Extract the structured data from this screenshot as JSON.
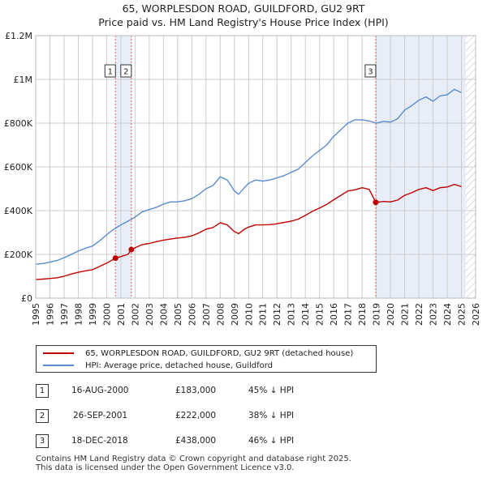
{
  "header": {
    "title": "65, WORPLESDON ROAD, GUILDFORD, GU2 9RT",
    "subtitle": "Price paid vs. HM Land Registry's House Price Index (HPI)"
  },
  "legend": {
    "property_label": "65, WORPLESDON ROAD, GUILDFORD, GU2 9RT (detached house)",
    "hpi_label": "HPI: Average price, detached house, Guildford"
  },
  "transactions": [
    {
      "num": "1",
      "date": "16-AUG-2000",
      "price": "£183,000",
      "hpi": "45% ↓ HPI"
    },
    {
      "num": "2",
      "date": "26-SEP-2001",
      "price": "£222,000",
      "hpi": "38% ↓ HPI"
    },
    {
      "num": "3",
      "date": "18-DEC-2018",
      "price": "£438,000",
      "hpi": "46% ↓ HPI"
    }
  ],
  "footer": {
    "line1": "Contains HM Land Registry data © Crown copyright and database right 2025.",
    "line2": "This data is licensed under the Open Government Licence v3.0."
  },
  "colors": {
    "property": "#c00000",
    "hpi": "#5b8bd0",
    "shade": "#e8eef9",
    "grid": "#cccccc",
    "vline": "#e06060"
  },
  "chart_data": {
    "type": "line",
    "title": "65, WORPLESDON ROAD, GUILDFORD, GU2 9RT",
    "xlabel": "",
    "ylabel": "",
    "xlim": [
      1995,
      2026
    ],
    "ylim": [
      0,
      1200000
    ],
    "x_ticks": [
      1995,
      1996,
      1997,
      1998,
      1999,
      2000,
      2001,
      2002,
      2003,
      2004,
      2005,
      2006,
      2007,
      2008,
      2009,
      2010,
      2011,
      2012,
      2013,
      2014,
      2015,
      2016,
      2017,
      2018,
      2019,
      2020,
      2021,
      2022,
      2023,
      2024,
      2025,
      2026
    ],
    "y_ticks": [
      {
        "value": 0,
        "label": "£0"
      },
      {
        "value": 200000,
        "label": "£200K"
      },
      {
        "value": 400000,
        "label": "£400K"
      },
      {
        "value": 600000,
        "label": "£600K"
      },
      {
        "value": 800000,
        "label": "£800K"
      },
      {
        "value": 1000000,
        "label": "£1M"
      },
      {
        "value": 1200000,
        "label": "£1.2M"
      }
    ],
    "grid": true,
    "shaded_ranges": [
      [
        2000.62,
        2001.74
      ],
      [
        2018.96,
        2025.3
      ]
    ],
    "future_hatch_from": 2025.3,
    "markers": [
      {
        "label": "1",
        "x": 2000.62,
        "y": 183000
      },
      {
        "label": "2",
        "x": 2001.74,
        "y": 222000
      },
      {
        "label": "3",
        "x": 2018.96,
        "y": 438000
      }
    ],
    "series": [
      {
        "name": "HPI: Average price, detached house, Guildford",
        "x": [
          1995,
          1995.5,
          1996,
          1996.5,
          1997,
          1997.5,
          1998,
          1998.5,
          1999,
          1999.5,
          2000,
          2000.5,
          2001,
          2001.5,
          2002,
          2002.5,
          2003,
          2003.5,
          2004,
          2004.5,
          2005,
          2005.5,
          2006,
          2006.5,
          2007,
          2007.5,
          2008,
          2008.5,
          2009,
          2009.3,
          2009.7,
          2010,
          2010.5,
          2011,
          2011.5,
          2012,
          2012.5,
          2013,
          2013.5,
          2014,
          2014.5,
          2015,
          2015.5,
          2016,
          2016.5,
          2017,
          2017.5,
          2018,
          2018.5,
          2019,
          2019.5,
          2020,
          2020.5,
          2021,
          2021.5,
          2022,
          2022.5,
          2023,
          2023.5,
          2024,
          2024.5,
          2025
        ],
        "values": [
          155000,
          158000,
          165000,
          172000,
          185000,
          200000,
          215000,
          228000,
          238000,
          262000,
          290000,
          315000,
          335000,
          352000,
          370000,
          395000,
          405000,
          415000,
          430000,
          440000,
          440000,
          445000,
          455000,
          475000,
          500000,
          515000,
          555000,
          540000,
          490000,
          475000,
          505000,
          525000,
          540000,
          535000,
          540000,
          550000,
          560000,
          575000,
          590000,
          620000,
          650000,
          675000,
          700000,
          740000,
          770000,
          800000,
          815000,
          815000,
          810000,
          800000,
          808000,
          805000,
          820000,
          860000,
          880000,
          905000,
          920000,
          900000,
          925000,
          930000,
          955000,
          940000
        ]
      },
      {
        "name": "65, WORPLESDON ROAD, GUILDFORD, GU2 9RT (detached house)",
        "x": [
          1995,
          1995.5,
          1996,
          1996.5,
          1997,
          1997.5,
          1998,
          1998.5,
          1999,
          1999.5,
          2000,
          2000.62,
          2000.62,
          2001,
          2001.5,
          2001.74,
          2001.74,
          2002,
          2002.5,
          2003,
          2003.5,
          2004,
          2004.5,
          2005,
          2005.5,
          2006,
          2006.5,
          2007,
          2007.5,
          2008,
          2008.5,
          2009,
          2009.3,
          2009.7,
          2010,
          2010.5,
          2011,
          2011.5,
          2012,
          2012.5,
          2013,
          2013.5,
          2014,
          2014.5,
          2015,
          2015.5,
          2016,
          2016.5,
          2017,
          2017.5,
          2018,
          2018.5,
          2018.96,
          2018.96,
          2019.5,
          2020,
          2020.5,
          2021,
          2021.5,
          2022,
          2022.5,
          2023,
          2023.5,
          2024,
          2024.5,
          2025
        ],
        "values": [
          85000,
          87000,
          90000,
          93000,
          100000,
          110000,
          118000,
          125000,
          130000,
          145000,
          160000,
          183000,
          183000,
          190000,
          200000,
          222000,
          222000,
          230000,
          245000,
          250000,
          258000,
          265000,
          270000,
          275000,
          278000,
          285000,
          298000,
          315000,
          323000,
          345000,
          335000,
          304000,
          295000,
          315000,
          325000,
          335000,
          335000,
          336000,
          340000,
          346000,
          352000,
          361000,
          378000,
          397000,
          412000,
          428000,
          450000,
          470000,
          490000,
          495000,
          505000,
          497000,
          438000,
          438000,
          442000,
          440000,
          448000,
          470000,
          482000,
          497000,
          505000,
          492000,
          505000,
          508000,
          520000,
          510000
        ]
      }
    ]
  }
}
